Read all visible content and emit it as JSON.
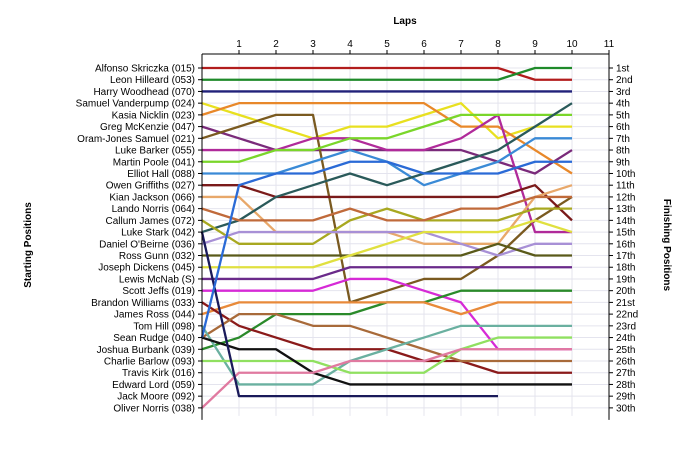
{
  "chart_data": {
    "type": "line",
    "title": "Laps",
    "ylabel_left": "Starting Positions",
    "ylabel_right": "Finishing Positions",
    "laps": [
      1,
      2,
      3,
      4,
      5,
      6,
      7,
      8,
      9,
      10,
      11
    ],
    "positions": [
      "1st",
      "2nd",
      "3rd",
      "4th",
      "5th",
      "6th",
      "7th",
      "8th",
      "9th",
      "10th",
      "11th",
      "12th",
      "13th",
      "14th",
      "15th",
      "16th",
      "17th",
      "18th",
      "19th",
      "20th",
      "21st",
      "22nd",
      "23rd",
      "24th",
      "25th",
      "26th",
      "27th",
      "28th",
      "29th",
      "30th"
    ],
    "grid": true,
    "series": [
      {
        "name": "Alfonso Skriczka (015)",
        "color": "#b21d1d",
        "values": [
          1,
          1,
          1,
          1,
          1,
          1,
          1,
          1,
          1,
          2,
          2
        ]
      },
      {
        "name": "Leon Hilleard (053)",
        "color": "#1f8a2a",
        "values": [
          2,
          2,
          2,
          2,
          2,
          2,
          2,
          2,
          2,
          1,
          1
        ]
      },
      {
        "name": "Harry Woodhead (070)",
        "color": "#22227a",
        "values": [
          3,
          3,
          3,
          3,
          3,
          3,
          3,
          3,
          3,
          3,
          3
        ]
      },
      {
        "name": "Samuel Vanderpump (024)",
        "color": "#e8e020",
        "values": [
          4,
          5,
          6,
          7,
          6,
          6,
          5,
          4,
          7,
          6,
          6
        ]
      },
      {
        "name": "Kasia Nicklin (023)",
        "color": "#7a2a7a",
        "values": [
          6,
          7,
          8,
          8,
          8,
          8,
          8,
          8,
          9,
          10,
          8
        ]
      },
      {
        "name": "Greg McKenzie (047)",
        "color": "#e8882a",
        "values": [
          5,
          4,
          4,
          4,
          4,
          4,
          4,
          6,
          6,
          8,
          10
        ]
      },
      {
        "name": "Oram-Jones Samuel (021)",
        "color": "#7a5a20",
        "values": [
          7,
          6,
          5,
          5,
          21,
          20,
          19,
          19,
          17,
          14,
          12
        ]
      },
      {
        "name": "Luke Barker (055)",
        "color": "#b02a9a",
        "values": [
          8,
          8,
          8,
          7,
          7,
          8,
          8,
          7,
          5,
          15,
          15
        ]
      },
      {
        "name": "Martin Poole (041)",
        "color": "#7ad62a",
        "values": [
          9,
          9,
          8,
          8,
          7,
          7,
          6,
          5,
          5,
          5,
          5
        ]
      },
      {
        "name": "Elliot Hall (088)",
        "color": "#3a8ad6",
        "values": [
          10,
          10,
          10,
          9,
          8,
          9,
          11,
          10,
          9,
          7,
          7
        ]
      },
      {
        "name": "Owen Griffiths (027)",
        "color": "#7a1a1a",
        "values": [
          11,
          11,
          12,
          12,
          12,
          12,
          12,
          12,
          12,
          11,
          14
        ]
      },
      {
        "name": "Kian Jackson (066)",
        "color": "#e8a86a",
        "values": [
          12,
          12,
          15,
          15,
          15,
          15,
          16,
          16,
          16,
          12,
          11
        ]
      },
      {
        "name": "Lando Norris (064)",
        "color": "#2a5a5a",
        "values": [
          15,
          14,
          12,
          11,
          10,
          11,
          10,
          9,
          8,
          6,
          4
        ]
      },
      {
        "name": "Callum James (072)",
        "color": "#a8a820",
        "values": [
          14,
          16,
          16,
          16,
          14,
          13,
          14,
          14,
          14,
          13,
          13
        ]
      },
      {
        "name": "Luke Stark (042)",
        "color": "#a890d6",
        "values": [
          16,
          15,
          15,
          15,
          15,
          15,
          15,
          16,
          17,
          16,
          16
        ]
      },
      {
        "name": "Daniel O'Beirne (036)",
        "color": "#c06a3a",
        "values": [
          13,
          14,
          14,
          14,
          13,
          14,
          14,
          13,
          13,
          12,
          12
        ]
      },
      {
        "name": "Ross Gunn (032)",
        "color": "#5a5a1a",
        "values": [
          17,
          17,
          17,
          17,
          17,
          17,
          17,
          17,
          16,
          17,
          17
        ]
      },
      {
        "name": "Joseph Dickens (045)",
        "color": "#e0e040",
        "values": [
          18,
          18,
          18,
          18,
          17,
          16,
          15,
          15,
          15,
          14,
          15
        ]
      },
      {
        "name": "Lewis McNab (S)",
        "color": "#6a2a8a",
        "values": [
          19,
          19,
          19,
          19,
          18,
          18,
          18,
          18,
          18,
          18,
          18
        ]
      },
      {
        "name": "Scott Jeffs (019)",
        "color": "#d62ad6",
        "values": [
          20,
          20,
          20,
          20,
          19,
          19,
          20,
          21,
          25,
          25,
          25
        ]
      },
      {
        "name": "Brandon Williams (033)",
        "color": "#2a8a2a",
        "values": [
          25,
          24,
          22,
          22,
          22,
          21,
          21,
          20,
          20,
          20,
          20
        ]
      },
      {
        "name": "James Ross (044)",
        "color": "#e88a3a",
        "values": [
          22,
          21,
          21,
          21,
          21,
          21,
          21,
          22,
          21,
          21,
          21
        ]
      },
      {
        "name": "Tom Hill (098)",
        "color": "#8a1a1a",
        "values": [
          21,
          23,
          24,
          25,
          25,
          25,
          26,
          26,
          27,
          27,
          27
        ]
      },
      {
        "name": "Sean Rudge (040)",
        "color": "#a86a3a",
        "values": [
          24,
          22,
          22,
          23,
          23,
          24,
          25,
          26,
          26,
          26,
          26
        ]
      },
      {
        "name": "Joshua Burbank (039)",
        "color": "#6ab0a0",
        "values": [
          23,
          28,
          28,
          28,
          26,
          25,
          24,
          23,
          23,
          23,
          23
        ]
      },
      {
        "name": "Charlie Barlow (093)",
        "color": "#90e060",
        "values": [
          26,
          26,
          26,
          26,
          27,
          27,
          27,
          25,
          24,
          24,
          24
        ]
      },
      {
        "name": "Travis Kirk (016)",
        "color": "#111111",
        "values": [
          24,
          25,
          25,
          27,
          28,
          28,
          28,
          28,
          28,
          28,
          28
        ]
      },
      {
        "name": "Edward Lord (059)",
        "color": "#e07aa0",
        "values": [
          30,
          27,
          27,
          27,
          26,
          26,
          26,
          25,
          25,
          25,
          25
        ]
      },
      {
        "name": "Jack Moore (092)",
        "color": "#1a1a5a",
        "values": [
          15,
          29,
          29,
          29,
          29,
          29,
          29,
          29,
          29
        ]
      },
      {
        "name": "Oliver Norris (038)",
        "color": "#2a6ad6",
        "values": [
          24,
          11,
          10,
          10,
          9,
          9,
          10,
          10,
          10,
          9,
          9
        ]
      }
    ]
  }
}
